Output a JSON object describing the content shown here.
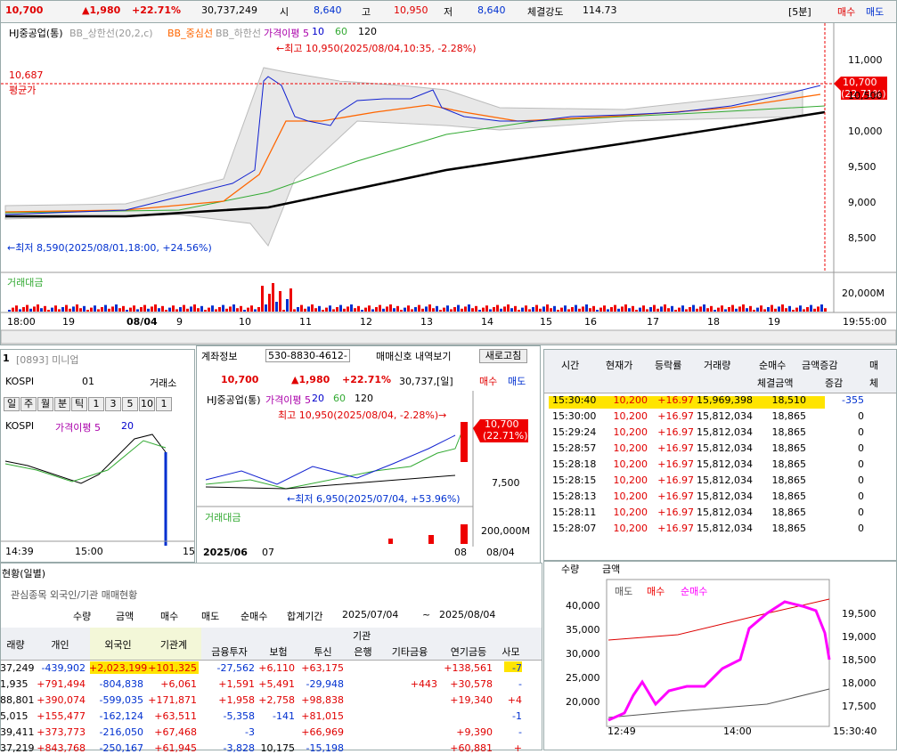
{
  "top_bar": {
    "price": "10,700",
    "change": "▲1,980",
    "rate": "+22.71%",
    "volume": "30,737,249",
    "open_label": "시",
    "open": "8,640",
    "high_label": "고",
    "high": "10,950",
    "low_label": "저",
    "low": "8,640",
    "strength_label": "체결강도",
    "strength": "114.73",
    "period": "[5분]",
    "buy": "매수",
    "sell": "매도"
  },
  "main_chart": {
    "legend": [
      "HJ중공업(통)",
      "BB_상한선(20,2,c)",
      "BB_중심선",
      "BB_하한선",
      "가격이평 5",
      "10",
      "60",
      "120"
    ],
    "high_note": "←최고 10,950(2025/08/04,10:35, -2.28%)",
    "low_note": "←최저 8,590(2025/08/01,18:00, +24.56%)",
    "avg_value": "10,687",
    "avg_label": "평균가",
    "current_price": "10,700",
    "current_rate": "(22.71%)",
    "y_labels": [
      "11,000",
      "10,500",
      "10,000",
      "9,500",
      "9,000",
      "8,500"
    ],
    "volume_title": "거래대금",
    "volume_label": "20,000M",
    "x_labels": [
      "18:00",
      "19",
      "08/04",
      "9",
      "10",
      "11",
      "12",
      "13",
      "14",
      "15",
      "16",
      "17",
      "18",
      "19"
    ],
    "time": "19:55:00"
  },
  "mini_panel": {
    "number": "1",
    "title": "[0893] 미니업",
    "market": "KOSPI",
    "code": "01",
    "exchange": "거래소",
    "buttons": [
      "일",
      "주",
      "월",
      "분",
      "틱",
      "1",
      "3",
      "5",
      "10",
      "1"
    ],
    "legend": [
      "KOSPI",
      "가격이평 5",
      "20"
    ],
    "x_labels": [
      "14:39",
      "15:00",
      "15"
    ]
  },
  "center_panel": {
    "account_label": "계좌정보",
    "account": "530-8830-4612-",
    "signal": "매매신호 내역보기",
    "refresh": "새로고침",
    "price": "10,700",
    "change": "▲1,980",
    "rate": "+22.71%",
    "volume": "30,737,[일]",
    "buy": "매수",
    "sell": "매도",
    "legend": [
      "HJ중공업(통)",
      "가격이평 5",
      "20",
      "60",
      "120"
    ],
    "high_note": "최고 10,950(2025/08/04, -2.28%)→",
    "low_note": "←최저 6,950(2025/07/04, +53.96%)",
    "current_price": "10,700",
    "current_rate": "(22.71%)",
    "y_label": "7,500",
    "volume_title": "거래대금",
    "volume_label": "200,000M",
    "x_labels": [
      "2025/06",
      "07",
      "08",
      "08/04"
    ]
  },
  "tick_table": {
    "headers": [
      "시간",
      "현재가",
      "등락률",
      "거래량",
      "순매수",
      "금액증감",
      "매"
    ],
    "subheaders": [
      "체결금액",
      "증감",
      "체"
    ],
    "rows": [
      [
        "15:30:40",
        "10,200",
        "+16.97",
        "15,969,398",
        "18,510",
        "-355"
      ],
      [
        "15:30:00",
        "10,200",
        "+16.97",
        "15,812,034",
        "18,865",
        "0"
      ],
      [
        "15:29:24",
        "10,200",
        "+16.97",
        "15,812,034",
        "18,865",
        "0"
      ],
      [
        "15:28:57",
        "10,200",
        "+16.97",
        "15,812,034",
        "18,865",
        "0"
      ],
      [
        "15:28:18",
        "10,200",
        "+16.97",
        "15,812,034",
        "18,865",
        "0"
      ],
      [
        "15:28:15",
        "10,200",
        "+16.97",
        "15,812,034",
        "18,865",
        "0"
      ],
      [
        "15:28:13",
        "10,200",
        "+16.97",
        "15,812,034",
        "18,865",
        "0"
      ],
      [
        "15:28:11",
        "10,200",
        "+16.97",
        "15,812,034",
        "18,865",
        "0"
      ],
      [
        "15:28:07",
        "10,200",
        "+16.97",
        "15,812,034",
        "18,865",
        "0"
      ]
    ]
  },
  "flow_chart": {
    "radios": [
      "수량",
      "금액"
    ],
    "legend": [
      "매도",
      "매수",
      "순매수"
    ],
    "left_labels": [
      "40,000",
      "35,000",
      "30,000",
      "25,000",
      "20,000"
    ],
    "right_labels": [
      "19,500",
      "19,000",
      "18,500",
      "18,000",
      "17,500"
    ],
    "x_labels": [
      "12:49",
      "14:00",
      "15:30:40"
    ]
  },
  "investor_table": {
    "title": "현황(일별)",
    "tab": "관심종목 외국인/기관 매매현황",
    "radios": [
      "수량",
      "금액",
      "매수",
      "매도",
      "순매수"
    ],
    "period_label": "합계기간",
    "from": "2025/07/04",
    "tilde": "~",
    "to": "2025/08/04",
    "group": "기관",
    "headers": [
      "래량",
      "개인",
      "외국인",
      "기관계",
      "금융투자",
      "보험",
      "투신",
      "은행",
      "기타금융",
      "연기금등",
      "사모"
    ],
    "rows": [
      [
        "37,249",
        "-439,902",
        "+2,023,199",
        "+101,325",
        "-27,562",
        "+6,110",
        "+63,175",
        null,
        null,
        "+138,561",
        "-7"
      ],
      [
        "1,935",
        "+791,494",
        "-804,838",
        "+6,061",
        "+1,591",
        "+5,491",
        "-29,948",
        null,
        "+443",
        "+30,578",
        "-"
      ],
      [
        "88,801",
        "+390,074",
        "-599,035",
        "+171,871",
        "+1,958",
        "+2,758",
        "+98,838",
        null,
        null,
        "+19,340",
        "+4"
      ],
      [
        "5,015",
        "+155,477",
        "-162,124",
        "+63,511",
        "-5,358",
        "-141",
        "+81,015",
        null,
        null,
        null,
        "-1"
      ],
      [
        "39,411",
        "+373,773",
        "-216,050",
        "+67,468",
        "-3",
        null,
        "+66,969",
        null,
        null,
        "+9,390",
        "-"
      ],
      [
        "37,219",
        "+843,768",
        "-250,167",
        "+61,945",
        "-3,828",
        "10,175",
        "-15,198",
        null,
        null,
        "+60,881",
        "+"
      ]
    ]
  }
}
